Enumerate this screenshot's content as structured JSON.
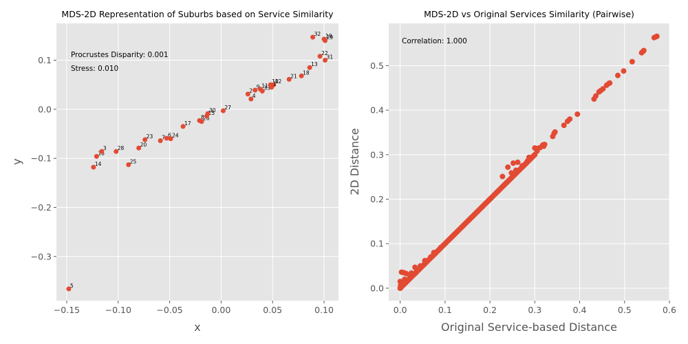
{
  "colors": {
    "panel_bg": "#e5e5e5",
    "grid": "#ffffff",
    "marker": "#e24a33",
    "text": "#555555",
    "title": "#000000"
  },
  "chart_data": [
    {
      "type": "scatter",
      "title": "MDS-2D Representation of Suburbs based on Service Similarity",
      "xlabel": "x",
      "ylabel": "y",
      "xlim": [
        -0.16,
        0.114
      ],
      "ylim": [
        -0.39,
        0.175
      ],
      "xticks": [
        -0.15,
        -0.1,
        -0.05,
        0.0,
        0.05,
        0.1
      ],
      "xtick_labels": [
        "−0.15",
        "−0.10",
        "−0.05",
        "0.00",
        "0.05",
        "0.10"
      ],
      "yticks": [
        -0.3,
        -0.2,
        -0.1,
        0.0,
        0.1
      ],
      "ytick_labels": [
        "−0.3",
        "−0.2",
        "−0.1",
        "0.0",
        "0.1"
      ],
      "annotations": [
        "Procrustes Disparity: 0.001",
        "Stress: 0.010"
      ],
      "points": [
        {
          "label": "5",
          "x": -0.148,
          "y": -0.366
        },
        {
          "label": "14",
          "x": -0.124,
          "y": -0.118
        },
        {
          "label": "16",
          "x": -0.121,
          "y": -0.096
        },
        {
          "label": "3",
          "x": -0.116,
          "y": -0.086
        },
        {
          "label": "28",
          "x": -0.102,
          "y": -0.086
        },
        {
          "label": "25",
          "x": -0.09,
          "y": -0.113
        },
        {
          "label": "20",
          "x": -0.08,
          "y": -0.079
        },
        {
          "label": "23",
          "x": -0.074,
          "y": -0.062
        },
        {
          "label": "7",
          "x": -0.059,
          "y": -0.064
        },
        {
          "label": "6",
          "x": -0.053,
          "y": -0.059
        },
        {
          "label": "24",
          "x": -0.049,
          "y": -0.06
        },
        {
          "label": "17",
          "x": -0.037,
          "y": -0.035
        },
        {
          "label": "8",
          "x": -0.021,
          "y": -0.023
        },
        {
          "label": "26",
          "x": -0.019,
          "y": -0.025
        },
        {
          "label": "15",
          "x": -0.014,
          "y": -0.014
        },
        {
          "label": "30",
          "x": -0.013,
          "y": -0.009
        },
        {
          "label": "27",
          "x": 0.002,
          "y": -0.003
        },
        {
          "label": "2",
          "x": 0.026,
          "y": 0.031
        },
        {
          "label": "4",
          "x": 0.029,
          "y": 0.021
        },
        {
          "label": "9",
          "x": 0.033,
          "y": 0.039
        },
        {
          "label": "11",
          "x": 0.038,
          "y": 0.041
        },
        {
          "label": "33",
          "x": 0.04,
          "y": 0.037
        },
        {
          "label": "10",
          "x": 0.048,
          "y": 0.05
        },
        {
          "label": "12",
          "x": 0.051,
          "y": 0.05
        },
        {
          "label": "1",
          "x": 0.049,
          "y": 0.045
        },
        {
          "label": "21",
          "x": 0.066,
          "y": 0.061
        },
        {
          "label": "18",
          "x": 0.078,
          "y": 0.068
        },
        {
          "label": "13",
          "x": 0.086,
          "y": 0.085
        },
        {
          "label": "22",
          "x": 0.096,
          "y": 0.108
        },
        {
          "label": "31",
          "x": 0.101,
          "y": 0.1
        },
        {
          "label": "32",
          "x": 0.089,
          "y": 0.147
        },
        {
          "label": "19",
          "x": 0.1,
          "y": 0.143
        },
        {
          "label": "29",
          "x": 0.101,
          "y": 0.14
        }
      ]
    },
    {
      "type": "scatter",
      "title": "MDS-2D vs Original Services Similarity (Pairwise)",
      "xlabel": "Original Service-based Distance",
      "ylabel": "2D Distance",
      "xlim": [
        -0.0255,
        0.6
      ],
      "ylim": [
        -0.028,
        0.595
      ],
      "xticks": [
        0.0,
        0.1,
        0.2,
        0.3,
        0.4,
        0.5,
        0.6
      ],
      "xtick_labels": [
        "0.0",
        "0.1",
        "0.2",
        "0.3",
        "0.4",
        "0.5",
        "0.6"
      ],
      "yticks": [
        0.0,
        0.1,
        0.2,
        0.3,
        0.4,
        0.5
      ],
      "ytick_labels": [
        "0.0",
        "0.1",
        "0.2",
        "0.3",
        "0.4",
        "0.5"
      ],
      "annotations": [
        "Correlation: 1.000"
      ],
      "diagonal_range": [
        0.0,
        0.3
      ],
      "diagonal_step": 0.0025,
      "extra_points": [
        [
          0.0,
          0.0
        ],
        [
          0.001,
          0.006
        ],
        [
          0.002,
          0.013
        ],
        [
          0.0,
          0.015
        ],
        [
          0.003,
          0.036
        ],
        [
          0.008,
          0.035
        ],
        [
          0.013,
          0.033
        ],
        [
          0.01,
          0.02
        ],
        [
          0.015,
          0.018
        ],
        [
          0.02,
          0.03
        ],
        [
          0.025,
          0.034
        ],
        [
          0.033,
          0.047
        ],
        [
          0.037,
          0.041
        ],
        [
          0.045,
          0.05
        ],
        [
          0.055,
          0.062
        ],
        [
          0.068,
          0.07
        ],
        [
          0.075,
          0.08
        ],
        [
          0.09,
          0.091
        ],
        [
          0.228,
          0.251
        ],
        [
          0.24,
          0.272
        ],
        [
          0.252,
          0.281
        ],
        [
          0.262,
          0.283
        ],
        [
          0.248,
          0.259
        ],
        [
          0.258,
          0.265
        ],
        [
          0.272,
          0.275
        ],
        [
          0.283,
          0.285
        ],
        [
          0.287,
          0.294
        ],
        [
          0.3,
          0.315
        ],
        [
          0.307,
          0.314
        ],
        [
          0.312,
          0.316
        ],
        [
          0.318,
          0.322
        ],
        [
          0.322,
          0.323
        ],
        [
          0.32,
          0.319
        ],
        [
          0.305,
          0.308
        ],
        [
          0.34,
          0.341
        ],
        [
          0.343,
          0.348
        ],
        [
          0.345,
          0.351
        ],
        [
          0.365,
          0.366
        ],
        [
          0.373,
          0.375
        ],
        [
          0.378,
          0.38
        ],
        [
          0.395,
          0.391
        ],
        [
          0.432,
          0.425
        ],
        [
          0.436,
          0.432
        ],
        [
          0.443,
          0.441
        ],
        [
          0.447,
          0.444
        ],
        [
          0.452,
          0.448
        ],
        [
          0.46,
          0.456
        ],
        [
          0.465,
          0.46
        ],
        [
          0.467,
          0.461
        ],
        [
          0.485,
          0.478
        ],
        [
          0.498,
          0.488
        ],
        [
          0.517,
          0.509
        ],
        [
          0.538,
          0.529
        ],
        [
          0.541,
          0.532
        ],
        [
          0.543,
          0.534
        ],
        [
          0.566,
          0.563
        ],
        [
          0.57,
          0.565
        ],
        [
          0.572,
          0.566
        ]
      ]
    }
  ]
}
